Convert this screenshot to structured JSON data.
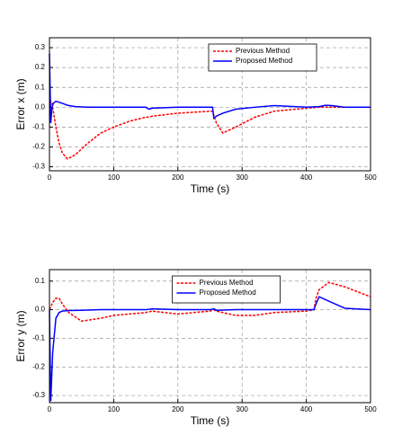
{
  "chart_data": [
    {
      "type": "line",
      "xlabel": "Time (s)",
      "ylabel": "Error x (m)",
      "xlim": [
        0,
        500
      ],
      "xticks": [
        0,
        100,
        200,
        300,
        400,
        500
      ],
      "ylim": [
        -0.32,
        0.35
      ],
      "yticks": [
        0.3,
        0.2,
        0.1,
        {
          "value": 0,
          "label": "0.0"
        },
        -0.1,
        -0.2,
        -0.3
      ],
      "grid": true,
      "legend": "upper right",
      "x": [
        0,
        2,
        4,
        6,
        10,
        15,
        20,
        28,
        40,
        60,
        80,
        100,
        125,
        150,
        155,
        160,
        200,
        250,
        254,
        256,
        260,
        270,
        290,
        320,
        350,
        400,
        420,
        430,
        440,
        460,
        500
      ],
      "series": [
        {
          "name": "Previous Method",
          "color": "#ff0000",
          "dashed": true,
          "values": [
            0,
            0.03,
            0.02,
            -0.02,
            -0.1,
            -0.18,
            -0.23,
            -0.26,
            -0.24,
            -0.18,
            -0.13,
            -0.1,
            -0.07,
            -0.05,
            -0.05,
            -0.045,
            -0.03,
            -0.02,
            -0.02,
            -0.04,
            -0.08,
            -0.13,
            -0.1,
            -0.05,
            -0.02,
            -0.005,
            0,
            0,
            0,
            0,
            0
          ]
        },
        {
          "name": "Proposed Method",
          "color": "#0000ff",
          "dashed": false,
          "values": [
            0.27,
            -0.08,
            0,
            0.02,
            0.03,
            0.025,
            0.02,
            0.01,
            0.003,
            0,
            0,
            0,
            0,
            0,
            -0.01,
            -0.005,
            0,
            0,
            0,
            -0.055,
            -0.045,
            -0.03,
            -0.01,
            0,
            0.008,
            0,
            0.003,
            0.01,
            0.008,
            0,
            0
          ]
        }
      ]
    },
    {
      "type": "line",
      "xlabel": "Time (s)",
      "ylabel": "Error y (m)",
      "xlim": [
        0,
        500
      ],
      "xticks": [
        0,
        100,
        200,
        300,
        400,
        500
      ],
      "ylim": [
        -0.325,
        0.14
      ],
      "yticks": [
        0.1,
        {
          "value": 0,
          "label": "0.0"
        },
        -0.1,
        -0.2,
        -0.3
      ],
      "grid": true,
      "legend": "upper center",
      "x": [
        0,
        2,
        5,
        10,
        15,
        20,
        30,
        50,
        80,
        100,
        150,
        160,
        200,
        250,
        256,
        260,
        290,
        320,
        350,
        400,
        412,
        415,
        420,
        435,
        460,
        500
      ],
      "series": [
        {
          "name": "Previous Method",
          "color": "#ff0000",
          "dashed": true,
          "values": [
            0,
            0.01,
            0.025,
            0.04,
            0.04,
            0.02,
            -0.01,
            -0.04,
            -0.03,
            -0.02,
            -0.01,
            -0.005,
            -0.015,
            -0.005,
            0,
            -0.005,
            -0.02,
            -0.02,
            -0.01,
            -0.005,
            0,
            0.04,
            0.07,
            0.095,
            0.08,
            0.045
          ]
        },
        {
          "name": "Proposed Method",
          "color": "#0000ff",
          "dashed": false,
          "values": [
            0,
            -0.32,
            -0.15,
            -0.03,
            -0.01,
            -0.005,
            -0.003,
            -0.002,
            0,
            0,
            0,
            0.003,
            0,
            0,
            0.003,
            -0.002,
            0,
            0,
            0,
            0,
            0,
            0.02,
            0.045,
            0.03,
            0.005,
            0
          ]
        }
      ]
    }
  ]
}
